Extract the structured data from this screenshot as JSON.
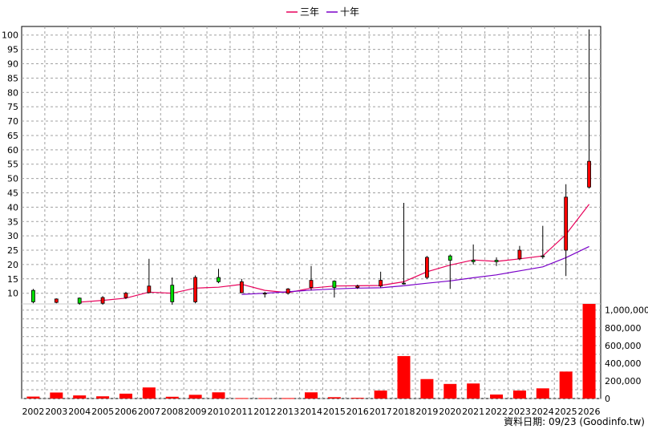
{
  "chart_data": [
    {
      "type": "candlestick",
      "legend": [
        {
          "label": "三年",
          "color": "#e8005a"
        },
        {
          "label": "十年",
          "color": "#7a00c8"
        }
      ],
      "years": [
        "2002",
        "2003",
        "2004",
        "2005",
        "2006",
        "2007",
        "2008",
        "2009",
        "2010",
        "2011",
        "2012",
        "2013",
        "2014",
        "2015",
        "2016",
        "2017",
        "2018",
        "2019",
        "2020",
        "2021",
        "2022",
        "2023",
        "2024",
        "2025",
        "2026"
      ],
      "ohlc": [
        {
          "open": 7.0,
          "high": 11.5,
          "low": 6.5,
          "close": 11.0
        },
        {
          "open": 8.0,
          "high": 8.2,
          "low": 6.5,
          "close": 6.8
        },
        {
          "open": 6.5,
          "high": 8.5,
          "low": 6.0,
          "close": 8.3
        },
        {
          "open": 8.5,
          "high": 9.0,
          "low": 6.0,
          "close": 6.5
        },
        {
          "open": 10.0,
          "high": 10.5,
          "low": 8.0,
          "close": 8.5
        },
        {
          "open": 12.5,
          "high": 22.0,
          "low": 10.0,
          "close": 10.2
        },
        {
          "open": 7.0,
          "high": 15.5,
          "low": 6.0,
          "close": 12.8
        },
        {
          "open": 15.5,
          "high": 16.2,
          "low": 6.5,
          "close": 7.0
        },
        {
          "open": 14.0,
          "high": 18.5,
          "low": 13.5,
          "close": 15.5
        },
        {
          "open": 14.0,
          "high": 15.0,
          "low": 10.0,
          "close": 10.2
        },
        {
          "open": 10.0,
          "high": 10.5,
          "low": 8.5,
          "close": 9.8
        },
        {
          "open": 11.5,
          "high": 11.8,
          "low": 9.5,
          "close": 10.0
        },
        {
          "open": 14.5,
          "high": 19.5,
          "low": 11.0,
          "close": 12.0
        },
        {
          "open": 12.0,
          "high": 14.5,
          "low": 8.5,
          "close": 14.2
        },
        {
          "open": 12.5,
          "high": 13.0,
          "low": 11.5,
          "close": 12.0
        },
        {
          "open": 14.5,
          "high": 17.5,
          "low": 12.0,
          "close": 12.5
        },
        {
          "open": 13.5,
          "high": 41.5,
          "low": 13.0,
          "close": 13.5
        },
        {
          "open": 22.5,
          "high": 23.0,
          "low": 15.0,
          "close": 15.5
        },
        {
          "open": 21.5,
          "high": 23.5,
          "low": 11.5,
          "close": 23.0
        },
        {
          "open": 21.0,
          "high": 27.0,
          "low": 20.0,
          "close": 21.5
        },
        {
          "open": 21.0,
          "high": 22.5,
          "low": 19.5,
          "close": 21.5
        },
        {
          "open": 25.0,
          "high": 26.5,
          "low": 21.5,
          "close": 22.0
        },
        {
          "open": 23.0,
          "high": 33.5,
          "low": 22.0,
          "close": 23.0
        },
        {
          "open": 43.5,
          "high": 48.0,
          "low": 16.0,
          "close": 25.0
        },
        {
          "open": 56.0,
          "high": 102.0,
          "low": 46.5,
          "close": 47.0
        }
      ],
      "ma3": [
        null,
        null,
        6.9,
        7.5,
        8.3,
        10.4,
        10.0,
        11.8,
        12.1,
        13.1,
        11.0,
        10.2,
        11.8,
        12.5,
        12.6,
        12.7,
        14.0,
        17.5,
        19.8,
        21.6,
        21.1,
        22.0,
        23.0,
        30.5,
        41.0
      ],
      "ma10": [
        null,
        null,
        null,
        null,
        null,
        null,
        null,
        null,
        null,
        9.6,
        10.0,
        10.5,
        11.1,
        11.5,
        11.8,
        11.9,
        12.6,
        13.5,
        14.3,
        15.4,
        16.4,
        17.8,
        19.2,
        22.4,
        26.3
      ],
      "ylim": [
        6,
        103
      ],
      "yticks": [
        10,
        15,
        20,
        25,
        30,
        35,
        40,
        45,
        50,
        55,
        60,
        65,
        70,
        75,
        80,
        85,
        90,
        95,
        100
      ]
    },
    {
      "type": "bar",
      "categories": [
        "2002",
        "2003",
        "2004",
        "2005",
        "2006",
        "2007",
        "2008",
        "2009",
        "2010",
        "2011",
        "2012",
        "2013",
        "2014",
        "2015",
        "2016",
        "2017",
        "2018",
        "2019",
        "2020",
        "2021",
        "2022",
        "2023",
        "2024",
        "2025",
        "2026"
      ],
      "values": [
        22000,
        68000,
        35000,
        25000,
        55000,
        125000,
        20000,
        42000,
        70000,
        5000,
        5000,
        5000,
        70000,
        15000,
        8000,
        90000,
        480000,
        220000,
        165000,
        170000,
        45000,
        90000,
        115000,
        305000,
        1070000
      ],
      "ylim": [
        0,
        1070000
      ],
      "yticks": [
        "0",
        "200,000",
        "400,000",
        "600,000",
        "800,000",
        "1,000,000"
      ],
      "color": "#ff0000"
    }
  ],
  "footer": "資料日期: 09/23  (Goodinfo.tw)",
  "colors": {
    "up": "#ff0000",
    "down": "#00dd00",
    "grid": "#a0a0a0",
    "ma3": "#e8005a",
    "ma10": "#7a00c8"
  }
}
